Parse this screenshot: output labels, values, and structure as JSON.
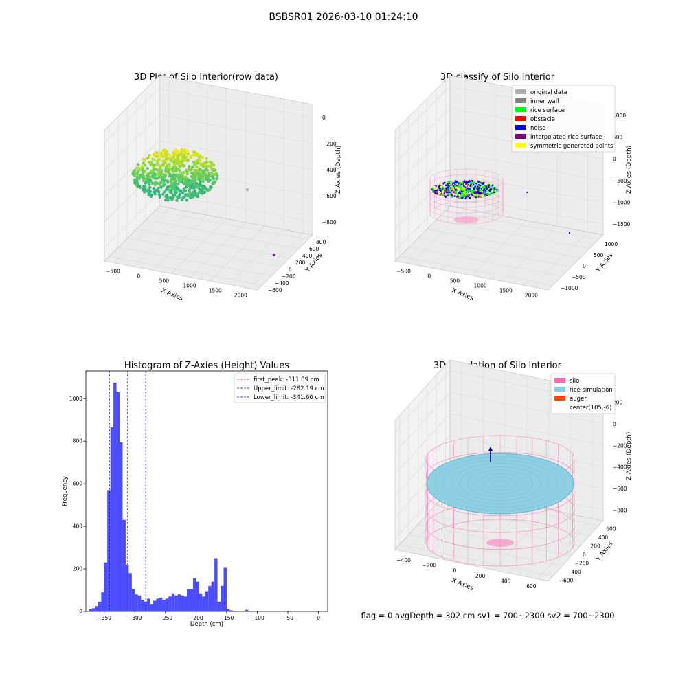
{
  "suptitle": "BSBSR01 2026-03-10 01:24:10",
  "footer_text": "flag = 0    avgDepth = 302 cm  sv1 = 700~2300  sv2 = 700~2300",
  "panels": {
    "raw": {
      "title": "3D Plot of Silo Interior(row data)",
      "x_label": "X Axies",
      "y_label": "Y Axies",
      "z_label": "Z Axies (Depth)",
      "x_ticks": [
        "−500",
        "0",
        "500",
        "1000",
        "1500",
        "2000"
      ],
      "y_ticks": [
        "−600",
        "−400",
        "−200",
        "0",
        "200",
        "400",
        "600",
        "800"
      ],
      "z_ticks": [
        "0",
        "−200",
        "−400",
        "−600",
        "−800"
      ]
    },
    "classify": {
      "title": "3D classify of Silo Interior",
      "x_label": "X Axies",
      "y_label": "Y Axies",
      "z_label": "Z Axies (Depth)",
      "x_ticks": [
        "−500",
        "0",
        "500",
        "1000",
        "1500",
        "2000"
      ],
      "y_ticks": [
        "−1000",
        "−500",
        "0",
        "500",
        "1000"
      ],
      "z_ticks": [
        "1000",
        "500",
        "0",
        "−500",
        "−1000",
        "−1500"
      ],
      "legend": [
        {
          "label": "original data",
          "color": "#b0b0b0"
        },
        {
          "label": "inner wall",
          "color": "#808080"
        },
        {
          "label": "rice surface",
          "color": "#00ff00"
        },
        {
          "label": "obstacle",
          "color": "#ff0000"
        },
        {
          "label": "noise",
          "color": "#0000ff"
        },
        {
          "label": "interpolated rice surface",
          "color": "#800080"
        },
        {
          "label": "symmetric generated points",
          "color": "#ffff00"
        }
      ]
    },
    "simulation": {
      "title": "3D simulation of Silo Interior",
      "x_label": "X Axies",
      "y_label": "Y Axies",
      "z_label": "Z Axies (Depth)",
      "x_ticks": [
        "−400",
        "−200",
        "0",
        "200",
        "400",
        "600"
      ],
      "y_ticks": [
        "−600",
        "−400",
        "−200",
        "0",
        "200",
        "400",
        "600"
      ],
      "z_ticks": [
        "200",
        "0",
        "−200",
        "−400",
        "−600",
        "−800"
      ],
      "legend": [
        {
          "label": "silo",
          "color": "#ff69b4"
        },
        {
          "label": "rice simulation",
          "color": "#87ceeb"
        },
        {
          "label": "auger",
          "color": "#ff4500"
        },
        {
          "label": "center(105,-6)",
          "color": ""
        }
      ]
    }
  },
  "chart_data": {
    "type": "bar",
    "title": "Histogram of Z-Axies (Height) Values",
    "xlabel": "Depth (cm)",
    "ylabel": "Frequency",
    "xlim": [
      -380,
      15
    ],
    "ylim": [
      0,
      1130
    ],
    "x_ticks": [
      -350,
      -300,
      -250,
      -200,
      -150,
      -100,
      -50,
      0
    ],
    "x_tick_labels": [
      "−350",
      "−300",
      "−250",
      "−200",
      "−150",
      "−100",
      "−50",
      "0"
    ],
    "y_ticks": [
      0,
      200,
      400,
      600,
      800,
      1000
    ],
    "bin_start": -375,
    "bin_width": 5,
    "values": [
      10,
      15,
      25,
      45,
      90,
      230,
      570,
      865,
      1075,
      1030,
      795,
      430,
      220,
      180,
      105,
      80,
      75,
      55,
      45,
      60,
      35,
      50,
      60,
      65,
      55,
      60,
      70,
      85,
      75,
      80,
      75,
      70,
      105,
      105,
      155,
      140,
      85,
      70,
      95,
      120,
      140,
      250,
      45,
      120,
      205,
      10,
      5,
      0,
      0,
      0,
      0,
      8,
      0
    ],
    "color": "#0000ff",
    "lines": [
      {
        "label": "first_peak: -311.89 cm",
        "x": -311.89,
        "color": "#ff0000"
      },
      {
        "label": "Upper_limit: -282.19 cm",
        "x": -282.19,
        "color": "#0000ff"
      },
      {
        "label": "Lower_limit: -341.60 cm",
        "x": -341.6,
        "color": "#0000ff"
      }
    ],
    "legend_position": "top-right"
  }
}
